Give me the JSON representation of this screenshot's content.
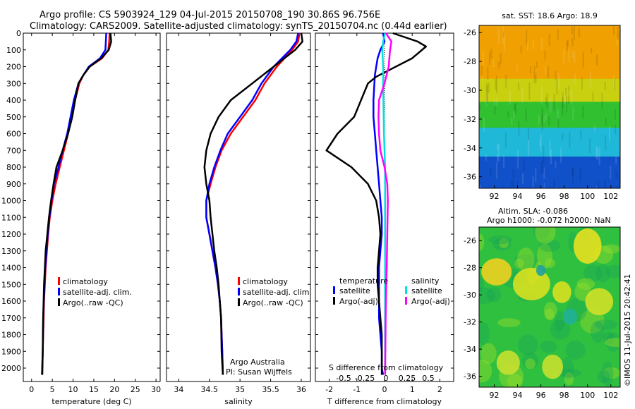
{
  "header": {
    "title_line1": "Argo profile: CS 5903924_129 04-Jul-2015 20150708_190 30.86S 96.756E",
    "title_line2": "Climatology: CARS2009. Satellite-adjusted climatology: synTS_20150704.nc (0.44d earlier)"
  },
  "credits": {
    "agency": "Argo Australia",
    "pi": "PI: Susan Wijffels",
    "watermark": "©IMOS 11-Jul-2015 20:42:41"
  },
  "colors": {
    "climatology": "#ff0000",
    "satellite_adj": "#0000ff",
    "argo": "#000000",
    "satellite_S": "#00e0e0",
    "argo_S_adj": "#ff00ff"
  },
  "chart_data": [
    {
      "id": "temperature",
      "type": "line",
      "xlabel": "temperature (deg C)",
      "ylabel": "",
      "xlim": [
        -2,
        31
      ],
      "ylim": [
        2080,
        0
      ],
      "xticks": [
        0,
        5,
        10,
        15,
        20,
        25,
        30
      ],
      "xticklabels": [
        "0",
        "5",
        "10",
        "15",
        "20",
        "25",
        "30"
      ],
      "yticks": [
        0,
        100,
        200,
        300,
        400,
        500,
        600,
        700,
        800,
        900,
        1000,
        1100,
        1200,
        1300,
        1400,
        1500,
        1600,
        1700,
        1800,
        1900,
        2000
      ],
      "legend": [
        "climatology",
        "satellite-adj. clim.",
        "Argo(..raw -QC)"
      ],
      "legend_position": "lower-right",
      "series": [
        {
          "name": "climatology",
          "color": "#ff0000",
          "x": [
            18.8,
            18.7,
            18.5,
            17.0,
            14.0,
            12.5,
            11.5,
            10.5,
            9.5,
            8.8,
            7.8,
            6.8,
            5.8,
            5.0,
            4.4,
            4.0,
            3.7,
            3.4,
            3.2,
            3.0,
            2.9,
            2.7,
            2.5
          ],
          "y": [
            0,
            50,
            100,
            150,
            200,
            250,
            300,
            400,
            500,
            600,
            700,
            800,
            900,
            1000,
            1100,
            1200,
            1300,
            1400,
            1500,
            1600,
            1700,
            1900,
            2040
          ]
        },
        {
          "name": "satellite-adj. clim.",
          "color": "#0000ff",
          "x": [
            18.0,
            17.9,
            17.8,
            16.5,
            13.8,
            12.5,
            11.3,
            10.2,
            9.4,
            8.6,
            7.5,
            6.5,
            5.4,
            4.8,
            4.3,
            3.9,
            3.6,
            3.3,
            3.1,
            2.95,
            2.8,
            2.7,
            2.5
          ],
          "y": [
            0,
            50,
            100,
            150,
            200,
            250,
            300,
            400,
            500,
            600,
            700,
            800,
            900,
            1000,
            1100,
            1200,
            1300,
            1400,
            1500,
            1600,
            1700,
            1900,
            2040
          ]
        },
        {
          "name": "Argo(..raw -QC)",
          "color": "#000000",
          "x": [
            19.0,
            19.2,
            18.6,
            16.8,
            14.0,
            12.5,
            11.3,
            10.5,
            9.8,
            8.8,
            7.5,
            6.0,
            5.3,
            4.7,
            4.2,
            3.8,
            3.4,
            3.2,
            3.0,
            2.9,
            2.8,
            2.7,
            2.6
          ],
          "y": [
            0,
            50,
            100,
            150,
            200,
            250,
            300,
            400,
            500,
            600,
            700,
            800,
            900,
            1000,
            1100,
            1200,
            1300,
            1400,
            1500,
            1600,
            1700,
            1900,
            2040
          ]
        }
      ]
    },
    {
      "id": "salinity",
      "type": "line",
      "xlabel": "salinity",
      "ylabel": "",
      "xlim": [
        33.8,
        36.15
      ],
      "ylim": [
        2080,
        0
      ],
      "xticks": [
        34,
        34.5,
        35,
        35.5,
        36
      ],
      "xticklabels": [
        "34",
        "34.5",
        "35",
        "35.5",
        "36"
      ],
      "legend": [
        "climatology",
        "satellite-adj. clim.",
        "Argo(..raw -QC)"
      ],
      "legend_position": "lower-right",
      "series": [
        {
          "name": "climatology",
          "color": "#ff0000",
          "x": [
            35.97,
            35.95,
            35.85,
            35.6,
            35.4,
            35.25,
            35.05,
            34.85,
            34.7,
            34.6,
            34.52,
            34.45,
            34.45,
            34.5,
            34.55,
            34.6,
            34.64,
            34.67,
            34.69,
            34.71,
            34.72
          ],
          "y": [
            0,
            50,
            100,
            200,
            300,
            400,
            500,
            600,
            700,
            800,
            900,
            1000,
            1100,
            1200,
            1300,
            1400,
            1500,
            1600,
            1700,
            1900,
            2040
          ]
        },
        {
          "name": "satellite-adj. clim.",
          "color": "#0000ff",
          "x": [
            35.95,
            35.92,
            35.82,
            35.55,
            35.35,
            35.2,
            35.0,
            34.8,
            34.68,
            34.58,
            34.5,
            34.45,
            34.45,
            34.5,
            34.55,
            34.6,
            34.64,
            34.67,
            34.69,
            34.71,
            34.72
          ],
          "y": [
            0,
            50,
            100,
            200,
            300,
            400,
            500,
            600,
            700,
            800,
            900,
            1000,
            1100,
            1200,
            1300,
            1400,
            1500,
            1600,
            1700,
            1900,
            2040
          ]
        },
        {
          "name": "Argo(..raw -QC)",
          "color": "#000000",
          "x": [
            36.0,
            36.02,
            35.9,
            35.55,
            35.2,
            34.85,
            34.65,
            34.52,
            34.45,
            34.42,
            34.45,
            34.5,
            34.52,
            34.55,
            34.58,
            34.62,
            34.65,
            34.67,
            34.69,
            34.7,
            34.72
          ],
          "y": [
            0,
            50,
            100,
            200,
            300,
            400,
            500,
            600,
            700,
            800,
            900,
            1000,
            1100,
            1200,
            1300,
            1400,
            1500,
            1600,
            1700,
            1900,
            2040
          ]
        }
      ]
    },
    {
      "id": "difference",
      "type": "line",
      "xlabel": "T difference from climatology",
      "xlabel_top": "S difference from climatology",
      "ylabel": "",
      "xlim": [
        -2.5,
        2.5
      ],
      "ylim": [
        2080,
        0
      ],
      "xticks": [
        -2,
        -1,
        0,
        1,
        2
      ],
      "xticklabels": [
        "-2",
        "-1",
        "0",
        "1",
        "2"
      ],
      "xticks_S": [
        -0.5,
        -0.25,
        0,
        0.25,
        0.5
      ],
      "xticklabels_S": [
        "-0.5",
        "-0.25",
        "0",
        "0.25",
        "0.5"
      ],
      "legend_headers": [
        "temperature",
        "salinity"
      ],
      "legend": [
        "satellite",
        "Argo(-adj)",
        "satellite",
        "Argo(-adj)"
      ],
      "legend_position": "lower-right",
      "series": [
        {
          "name": "satellite",
          "color": "#0000ff",
          "x": [
            -0.05,
            0.0,
            -0.15,
            -0.25,
            -0.35,
            -0.4,
            -0.4,
            -0.35,
            -0.3,
            -0.25,
            -0.2,
            -0.15,
            -0.1,
            -0.1,
            -0.15,
            -0.2,
            -0.2,
            -0.2,
            -0.2,
            -0.15,
            -0.1,
            -0.1,
            -0.05
          ],
          "y": [
            0,
            50,
            100,
            150,
            250,
            400,
            500,
            600,
            700,
            800,
            900,
            1000,
            1100,
            1200,
            1300,
            1400,
            1500,
            1600,
            1700,
            1800,
            1900,
            2000,
            2040
          ]
        },
        {
          "name": "Argo(-adj)",
          "color": "#000000",
          "x": [
            0.3,
            1.2,
            1.5,
            1.0,
            -0.3,
            -0.6,
            -1.1,
            -1.7,
            -2.1,
            -1.2,
            -0.6,
            -0.3,
            -0.2,
            -0.15,
            -0.2,
            -0.25,
            -0.25,
            -0.2,
            -0.15,
            -0.1,
            -0.1,
            -0.1
          ],
          "y": [
            0,
            50,
            80,
            150,
            260,
            300,
            500,
            600,
            700,
            800,
            900,
            1000,
            1100,
            1200,
            1300,
            1400,
            1500,
            1600,
            1700,
            1800,
            1900,
            2040
          ]
        },
        {
          "name": "satellite (S)",
          "color": "#00e0e0",
          "x": [
            0.02,
            -0.05,
            -0.08,
            -0.05,
            -0.05,
            -0.04,
            -0.03,
            -0.02,
            0.0,
            0.02,
            0.02,
            0.02,
            0.02,
            0.02,
            0.02,
            0.02,
            0.02,
            0.02,
            0.02
          ],
          "y": [
            0,
            50,
            100,
            200,
            300,
            400,
            500,
            600,
            700,
            800,
            900,
            1000,
            1200,
            1400,
            1500,
            1600,
            1700,
            1900,
            2040
          ]
        },
        {
          "name": "Argo(-adj) (S)",
          "color": "#ff00ff",
          "x": [
            0.05,
            0.25,
            0.2,
            0.15,
            0.0,
            -0.2,
            -0.22,
            -0.2,
            -0.15,
            0.0,
            0.1,
            0.12,
            0.1,
            0.08,
            0.06,
            0.05,
            0.04,
            0.03,
            0.02
          ],
          "y": [
            0,
            50,
            100,
            200,
            300,
            400,
            500,
            600,
            700,
            800,
            900,
            1000,
            1200,
            1400,
            1500,
            1600,
            1700,
            1900,
            2040
          ]
        }
      ]
    },
    {
      "id": "sst_map",
      "type": "heatmap",
      "title": "sat. SST: 18.6 Argo: 18.9",
      "xlim": [
        90.7,
        102.8
      ],
      "ylim": [
        -36.8,
        -25.5
      ],
      "xticks": [
        92,
        94,
        96,
        98,
        100,
        102
      ],
      "xticklabels": [
        "92",
        "94",
        "96",
        "98",
        "100",
        "102"
      ],
      "yticks": [
        -26,
        -28,
        -30,
        -32,
        -34,
        -36
      ],
      "yticklabels": [
        "-26",
        "-28",
        "-30",
        "-32",
        "-34",
        "-36"
      ],
      "bands": [
        {
          "from": -25.5,
          "to": -29.2,
          "color": "#f0a000"
        },
        {
          "from": -29.2,
          "to": -30.8,
          "color": "#c8d010"
        },
        {
          "from": -30.8,
          "to": -32.6,
          "color": "#30c030"
        },
        {
          "from": -32.6,
          "to": -34.6,
          "color": "#20b8d8"
        },
        {
          "from": -34.6,
          "to": -36.8,
          "color": "#1050c8"
        }
      ]
    },
    {
      "id": "sla_map",
      "type": "heatmap",
      "title_line1": "Altim. SLA: -0.086",
      "title_line2": "Argo h1000: -0.072 h2000: NaN",
      "xlim": [
        90.7,
        102.8
      ],
      "ylim": [
        -36.8,
        -25.0
      ],
      "xticks": [
        92,
        94,
        96,
        98,
        100,
        102
      ],
      "xticklabels": [
        "92",
        "94",
        "96",
        "98",
        "100",
        "102"
      ],
      "yticks": [
        -26,
        -28,
        -30,
        -32,
        -34,
        -36
      ],
      "yticklabels": [
        "-26",
        "-28",
        "-30",
        "-32",
        "-34",
        "-36"
      ],
      "base_color": "#30c040",
      "blobs": [
        {
          "x": 92.2,
          "y": -28.3,
          "rx": 1.3,
          "ry": 1.0,
          "color": "#f0d020"
        },
        {
          "x": 95.2,
          "y": -29.2,
          "rx": 1.6,
          "ry": 1.2,
          "color": "#d8e020"
        },
        {
          "x": 100.0,
          "y": -26.4,
          "rx": 1.2,
          "ry": 1.3,
          "color": "#e8e020"
        },
        {
          "x": 101.0,
          "y": -30.5,
          "rx": 1.2,
          "ry": 1.0,
          "color": "#d0e028"
        },
        {
          "x": 97.8,
          "y": -29.8,
          "rx": 0.8,
          "ry": 0.8,
          "color": "#d8e020"
        },
        {
          "x": 93.2,
          "y": -35.0,
          "rx": 1.0,
          "ry": 0.9,
          "color": "#c8e030"
        },
        {
          "x": 97.0,
          "y": -35.3,
          "rx": 0.9,
          "ry": 0.9,
          "color": "#c8e030"
        },
        {
          "x": 98.5,
          "y": -31.6,
          "rx": 0.6,
          "ry": 0.6,
          "color": "#20b098"
        },
        {
          "x": 96.0,
          "y": -28.2,
          "rx": 0.4,
          "ry": 0.4,
          "color": "#20a0a0"
        }
      ]
    }
  ]
}
